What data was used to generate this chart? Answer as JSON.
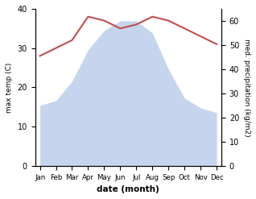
{
  "months": [
    "Jan",
    "Feb",
    "Mar",
    "Apr",
    "May",
    "Jun",
    "Jul",
    "Aug",
    "Sep",
    "Oct",
    "Nov",
    "Dec"
  ],
  "month_indices": [
    0,
    1,
    2,
    3,
    4,
    5,
    6,
    7,
    8,
    9,
    10,
    11
  ],
  "temperature": [
    28,
    30,
    32,
    38,
    37,
    35,
    36,
    38,
    37,
    35,
    33,
    31
  ],
  "precipitation": [
    25,
    27,
    35,
    48,
    56,
    60,
    60,
    55,
    40,
    28,
    24,
    22
  ],
  "temp_color": "#c0504d",
  "precip_fill_color": "#c5d5ee",
  "temp_ylim": [
    0,
    40
  ],
  "precip_ylim": [
    0,
    65
  ],
  "temp_yticks": [
    0,
    10,
    20,
    30,
    40
  ],
  "precip_yticks": [
    0,
    10,
    20,
    30,
    40,
    50,
    60
  ],
  "xlabel": "date (month)",
  "ylabel_left": "max temp (C)",
  "ylabel_right": "med. precipitation (kg/m2)",
  "fig_width": 3.18,
  "fig_height": 2.47,
  "dpi": 100
}
